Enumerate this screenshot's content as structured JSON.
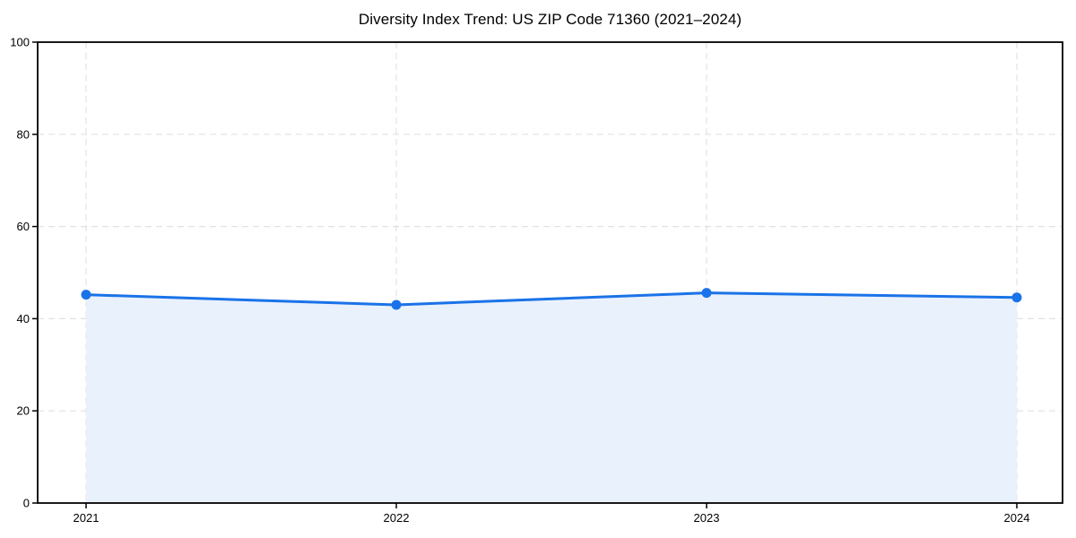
{
  "chart_data": {
    "type": "area",
    "title": "Diversity Index Trend: US ZIP Code 71360 (2021–2024)",
    "xlabel": "",
    "ylabel": "",
    "categories": [
      "2021",
      "2022",
      "2023",
      "2024"
    ],
    "series": [
      {
        "name": "Diversity Index",
        "values": [
          45.2,
          43.0,
          45.6,
          44.6
        ]
      }
    ],
    "ylim": [
      0,
      100
    ],
    "y_ticks": [
      0,
      20,
      40,
      60,
      80,
      100
    ],
    "grid": "dashed-both-axes",
    "legend": "none",
    "marker": "circle",
    "colors": {
      "line": "#1a73e8",
      "marker": "#1a73e8",
      "area_fill": "#e9f1fd",
      "gridline": "#e2e2e2",
      "axis": "#000000",
      "text": "#000000",
      "background": "#ffffff"
    }
  }
}
